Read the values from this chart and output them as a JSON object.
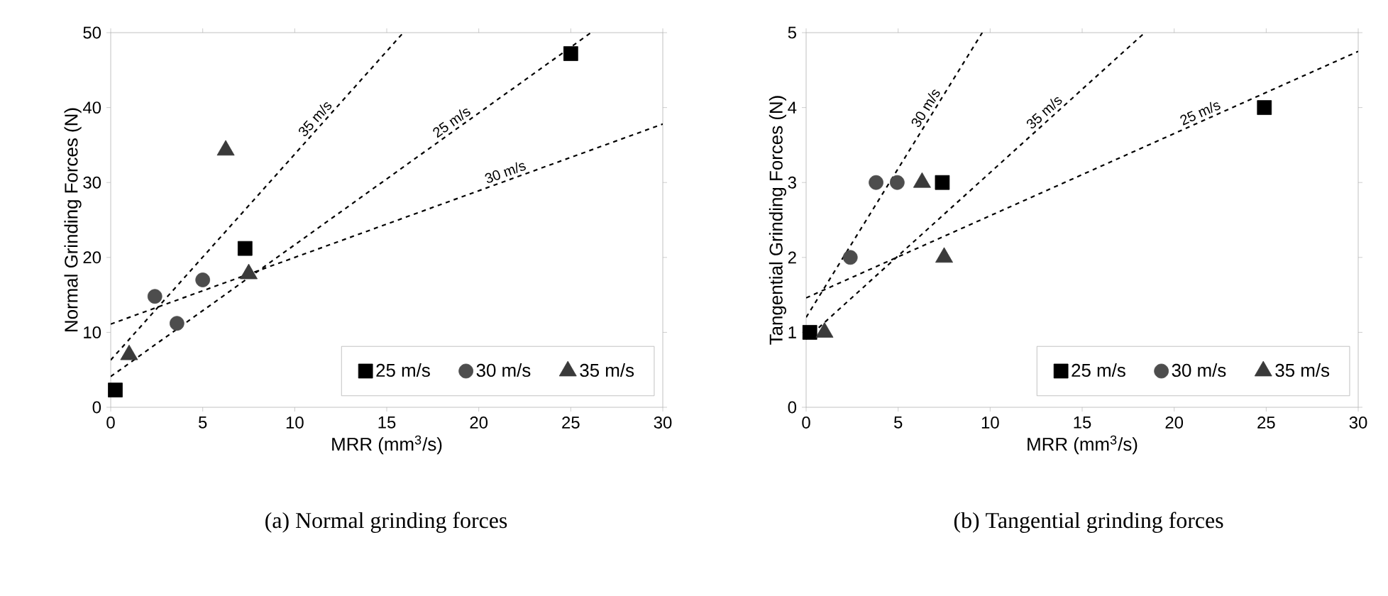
{
  "chart_data": [
    {
      "type": "scatter",
      "xlabel": "MRR (mm$^{3}$/s)",
      "ylabel": "Normal Grinding Forces (N)",
      "xlim": [
        0,
        30
      ],
      "ylim": [
        0,
        50
      ],
      "xticks": [
        0,
        5,
        10,
        15,
        20,
        25,
        30
      ],
      "yticks": [
        0,
        10,
        20,
        30,
        40,
        50
      ],
      "legend": "bottom right",
      "annotations": [
        "(a)  Normal grinding forces"
      ],
      "series": [
        {
          "type": "scatter",
          "name": "25 m/s",
          "color": "#000000",
          "marker": "square",
          "x": [
            0.25,
            7.3,
            25
          ],
          "values": [
            2.3,
            21.2,
            47.2
          ]
        },
        {
          "type": "scatter",
          "name": "30 m/s",
          "color": "#4d4d4d",
          "marker": "circle",
          "x": [
            2.4,
            3.6,
            5.0
          ],
          "values": [
            14.8,
            11.2,
            17.0
          ]
        },
        {
          "type": "scatter",
          "name": "35 m/s",
          "color": "#3a3a3a",
          "marker": "triangle",
          "x": [
            1.0,
            6.25,
            7.5
          ],
          "values": [
            7.0,
            34.3,
            17.8
          ]
        },
        {
          "type": "line",
          "name": "35 m/s",
          "color": "#000000",
          "line_style": "dashed",
          "x": [
            0,
            15.9
          ],
          "values": [
            6.3,
            50
          ]
        },
        {
          "type": "line",
          "name": "25 m/s",
          "color": "#000000",
          "line_style": "dashed",
          "x": [
            0,
            26.1
          ],
          "values": [
            4.1,
            50
          ]
        },
        {
          "type": "line",
          "name": "30 m/s",
          "color": "#000000",
          "line_style": "dashed",
          "x": [
            0,
            30
          ],
          "values": [
            11.1,
            37.8
          ]
        }
      ]
    },
    {
      "type": "scatter",
      "xlabel": "MRR (mm$^{3}$/s)",
      "ylabel": "Tangential Grinding Forces (N)",
      "xlim": [
        0,
        30
      ],
      "ylim": [
        0,
        5
      ],
      "xticks": [
        0,
        5,
        10,
        15,
        20,
        25,
        30
      ],
      "yticks": [
        0,
        1,
        2,
        3,
        4,
        5
      ],
      "legend": "bottom right",
      "annotations": [
        "(b)  Tangential grinding forces"
      ],
      "series": [
        {
          "type": "scatter",
          "name": "25 m/s",
          "color": "#000000",
          "marker": "square",
          "x": [
            0.2,
            7.4,
            24.9
          ],
          "values": [
            1.0,
            3.0,
            4.0
          ]
        },
        {
          "type": "scatter",
          "name": "30 m/s",
          "color": "#4d4d4d",
          "marker": "circle",
          "x": [
            2.4,
            3.8,
            4.95
          ],
          "values": [
            2.0,
            3.0,
            3.0
          ]
        },
        {
          "type": "scatter",
          "name": "35 m/s",
          "color": "#3a3a3a",
          "marker": "triangle",
          "x": [
            1.0,
            6.3,
            7.5
          ],
          "values": [
            1.0,
            3.0,
            2.0
          ]
        },
        {
          "type": "line",
          "name": "30 m/s",
          "color": "#000000",
          "line_style": "dashed",
          "x": [
            0,
            9.57
          ],
          "values": [
            1.2,
            5
          ]
        },
        {
          "type": "line",
          "name": "35 m/s",
          "color": "#000000",
          "line_style": "dashed",
          "x": [
            0,
            18.4
          ],
          "values": [
            0.91,
            5
          ]
        },
        {
          "type": "line",
          "name": "25 m/s",
          "color": "#000000",
          "line_style": "dashed",
          "x": [
            0,
            30
          ],
          "values": [
            1.46,
            4.75
          ]
        }
      ]
    }
  ]
}
